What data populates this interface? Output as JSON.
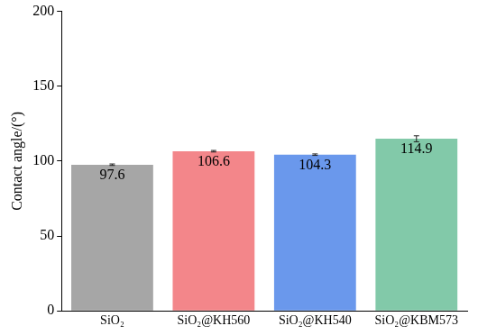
{
  "chart_data": {
    "type": "bar",
    "y_label": "Contact angle/(°)",
    "categories": [
      "SiO₂",
      "SiO₂@KH560",
      "SiO₂@KH540",
      "SiO₂@KBM573"
    ],
    "values": [
      97.6,
      106.6,
      104.3,
      114.9
    ],
    "errors": [
      0.5,
      0.5,
      0.5,
      2
    ],
    "colors": [
      "#a6a6a6",
      "#f3868a",
      "#6a98ec",
      "#82c9a9"
    ],
    "ylim": [
      0,
      200
    ],
    "yticks": [
      0,
      50,
      100,
      150,
      200
    ],
    "grid": false,
    "data_labels": true
  }
}
